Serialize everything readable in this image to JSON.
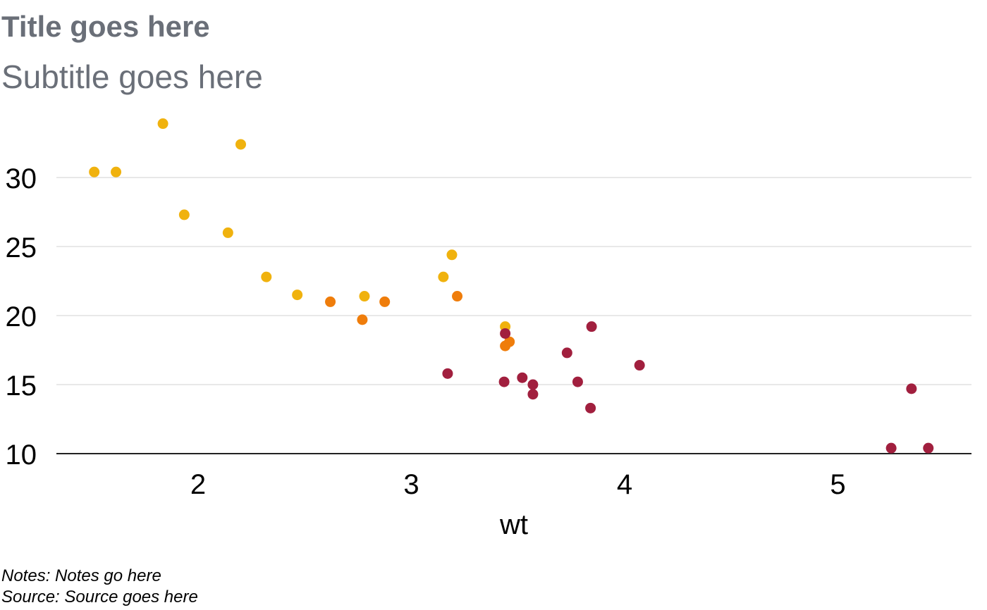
{
  "header": {
    "title": "Title goes here",
    "subtitle": "Subtitle goes here"
  },
  "footer": {
    "notes": "Notes: Notes go here",
    "source": "Source: Source goes here"
  },
  "chart_data": {
    "type": "scatter",
    "title": "Title goes here",
    "subtitle": "Subtitle goes here",
    "xlabel": "wt",
    "ylabel": "",
    "xlim": [
      1.333,
      5.624
    ],
    "ylim": [
      10,
      34
    ],
    "x_ticks": [
      2,
      3,
      4,
      5
    ],
    "y_ticks": [
      10,
      15,
      20,
      25,
      30
    ],
    "grid": "horizontal",
    "legend": "none",
    "colors": {
      "yellow": "#f0b20e",
      "orange": "#ef7d0b",
      "crimson": "#a11f3e",
      "gridline": "#d9d9d9",
      "axis": "#222222"
    },
    "points": [
      {
        "x": 1.513,
        "y": 30.4,
        "color": "yellow"
      },
      {
        "x": 1.615,
        "y": 30.4,
        "color": "yellow"
      },
      {
        "x": 1.835,
        "y": 33.9,
        "color": "yellow"
      },
      {
        "x": 2.2,
        "y": 32.4,
        "color": "yellow"
      },
      {
        "x": 1.935,
        "y": 27.3,
        "color": "yellow"
      },
      {
        "x": 2.14,
        "y": 26.0,
        "color": "yellow"
      },
      {
        "x": 2.32,
        "y": 22.8,
        "color": "yellow"
      },
      {
        "x": 2.465,
        "y": 21.5,
        "color": "yellow"
      },
      {
        "x": 2.78,
        "y": 21.4,
        "color": "yellow"
      },
      {
        "x": 3.15,
        "y": 22.8,
        "color": "yellow"
      },
      {
        "x": 3.19,
        "y": 24.4,
        "color": "yellow"
      },
      {
        "x": 3.44,
        "y": 19.2,
        "color": "yellow"
      },
      {
        "x": 2.62,
        "y": 21.0,
        "color": "orange"
      },
      {
        "x": 2.875,
        "y": 21.0,
        "color": "orange"
      },
      {
        "x": 2.77,
        "y": 19.7,
        "color": "orange"
      },
      {
        "x": 3.215,
        "y": 21.4,
        "color": "orange"
      },
      {
        "x": 3.46,
        "y": 18.1,
        "color": "orange"
      },
      {
        "x": 3.44,
        "y": 17.8,
        "color": "orange"
      },
      {
        "x": 3.44,
        "y": 18.7,
        "color": "crimson"
      },
      {
        "x": 3.57,
        "y": 14.3,
        "color": "crimson"
      },
      {
        "x": 3.17,
        "y": 15.8,
        "color": "crimson"
      },
      {
        "x": 3.435,
        "y": 15.2,
        "color": "crimson"
      },
      {
        "x": 3.52,
        "y": 15.5,
        "color": "crimson"
      },
      {
        "x": 3.57,
        "y": 15.0,
        "color": "crimson"
      },
      {
        "x": 3.73,
        "y": 17.3,
        "color": "crimson"
      },
      {
        "x": 3.78,
        "y": 15.2,
        "color": "crimson"
      },
      {
        "x": 3.84,
        "y": 13.3,
        "color": "crimson"
      },
      {
        "x": 3.845,
        "y": 19.2,
        "color": "crimson"
      },
      {
        "x": 4.07,
        "y": 16.4,
        "color": "crimson"
      },
      {
        "x": 5.25,
        "y": 10.4,
        "color": "crimson"
      },
      {
        "x": 5.345,
        "y": 14.7,
        "color": "crimson"
      },
      {
        "x": 5.424,
        "y": 10.4,
        "color": "crimson"
      }
    ]
  }
}
